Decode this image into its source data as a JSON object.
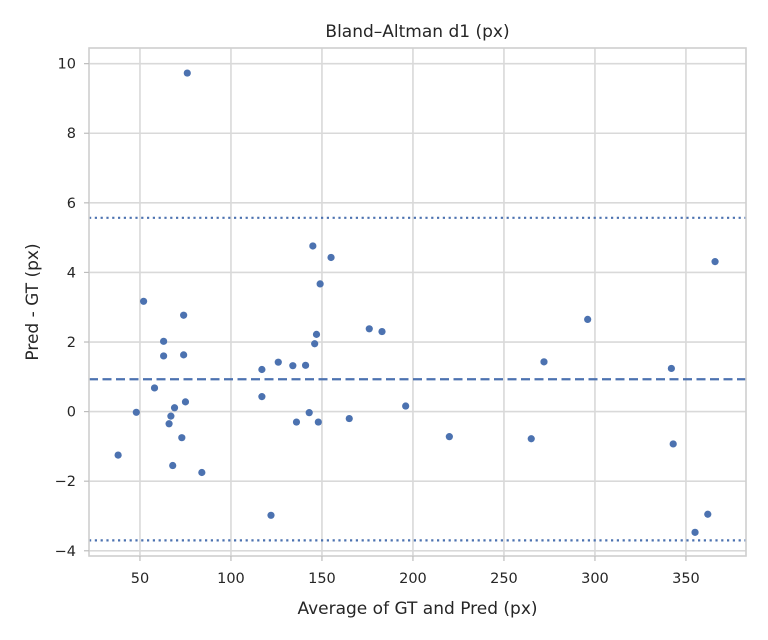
{
  "chart_data": {
    "type": "scatter",
    "title": "Bland–Altman d1 (px)",
    "xlabel": "Average of GT and Pred (px)",
    "ylabel": "Pred - GT (px)",
    "xlim": [
      22,
      383
    ],
    "ylim": [
      -4.15,
      10.45
    ],
    "xticks": [
      50,
      100,
      150,
      200,
      250,
      300,
      350
    ],
    "yticks": [
      -4,
      -2,
      0,
      2,
      4,
      6,
      8,
      10
    ],
    "xtick_labels": [
      "50",
      "100",
      "150",
      "200",
      "250",
      "300",
      "350"
    ],
    "ytick_labels": [
      "−4",
      "−2",
      "0",
      "2",
      "4",
      "6",
      "8",
      "10"
    ],
    "grid": true,
    "point_color": "#4c72b0",
    "mean_diff": 0.93,
    "upper_loa": 5.57,
    "lower_loa": -3.7,
    "points": [
      {
        "x": 38,
        "y": -1.25
      },
      {
        "x": 48,
        "y": -0.02
      },
      {
        "x": 52,
        "y": 3.17
      },
      {
        "x": 58,
        "y": 0.68
      },
      {
        "x": 63,
        "y": 2.02
      },
      {
        "x": 63,
        "y": 1.6
      },
      {
        "x": 66,
        "y": -0.35
      },
      {
        "x": 67,
        "y": -0.13
      },
      {
        "x": 68,
        "y": -1.55
      },
      {
        "x": 69,
        "y": 0.11
      },
      {
        "x": 73,
        "y": -0.75
      },
      {
        "x": 74,
        "y": 2.77
      },
      {
        "x": 74,
        "y": 1.63
      },
      {
        "x": 75,
        "y": 0.28
      },
      {
        "x": 76,
        "y": 9.73
      },
      {
        "x": 84,
        "y": -1.75
      },
      {
        "x": 117,
        "y": 1.21
      },
      {
        "x": 117,
        "y": 0.43
      },
      {
        "x": 122,
        "y": -2.98
      },
      {
        "x": 126,
        "y": 1.42
      },
      {
        "x": 134,
        "y": 1.32
      },
      {
        "x": 136,
        "y": -0.3
      },
      {
        "x": 141,
        "y": 1.33
      },
      {
        "x": 143,
        "y": -0.03
      },
      {
        "x": 145,
        "y": 4.76
      },
      {
        "x": 146,
        "y": 1.95
      },
      {
        "x": 147,
        "y": 2.22
      },
      {
        "x": 148,
        "y": -0.3
      },
      {
        "x": 149,
        "y": 3.67
      },
      {
        "x": 155,
        "y": 4.43
      },
      {
        "x": 165,
        "y": -0.2
      },
      {
        "x": 176,
        "y": 2.38
      },
      {
        "x": 183,
        "y": 2.3
      },
      {
        "x": 196,
        "y": 0.16
      },
      {
        "x": 220,
        "y": -0.72
      },
      {
        "x": 265,
        "y": -0.78
      },
      {
        "x": 272,
        "y": 1.43
      },
      {
        "x": 296,
        "y": 2.65
      },
      {
        "x": 342,
        "y": 1.24
      },
      {
        "x": 343,
        "y": -0.93
      },
      {
        "x": 355,
        "y": -3.47
      },
      {
        "x": 362,
        "y": -2.95
      },
      {
        "x": 366,
        "y": 4.31
      }
    ]
  }
}
